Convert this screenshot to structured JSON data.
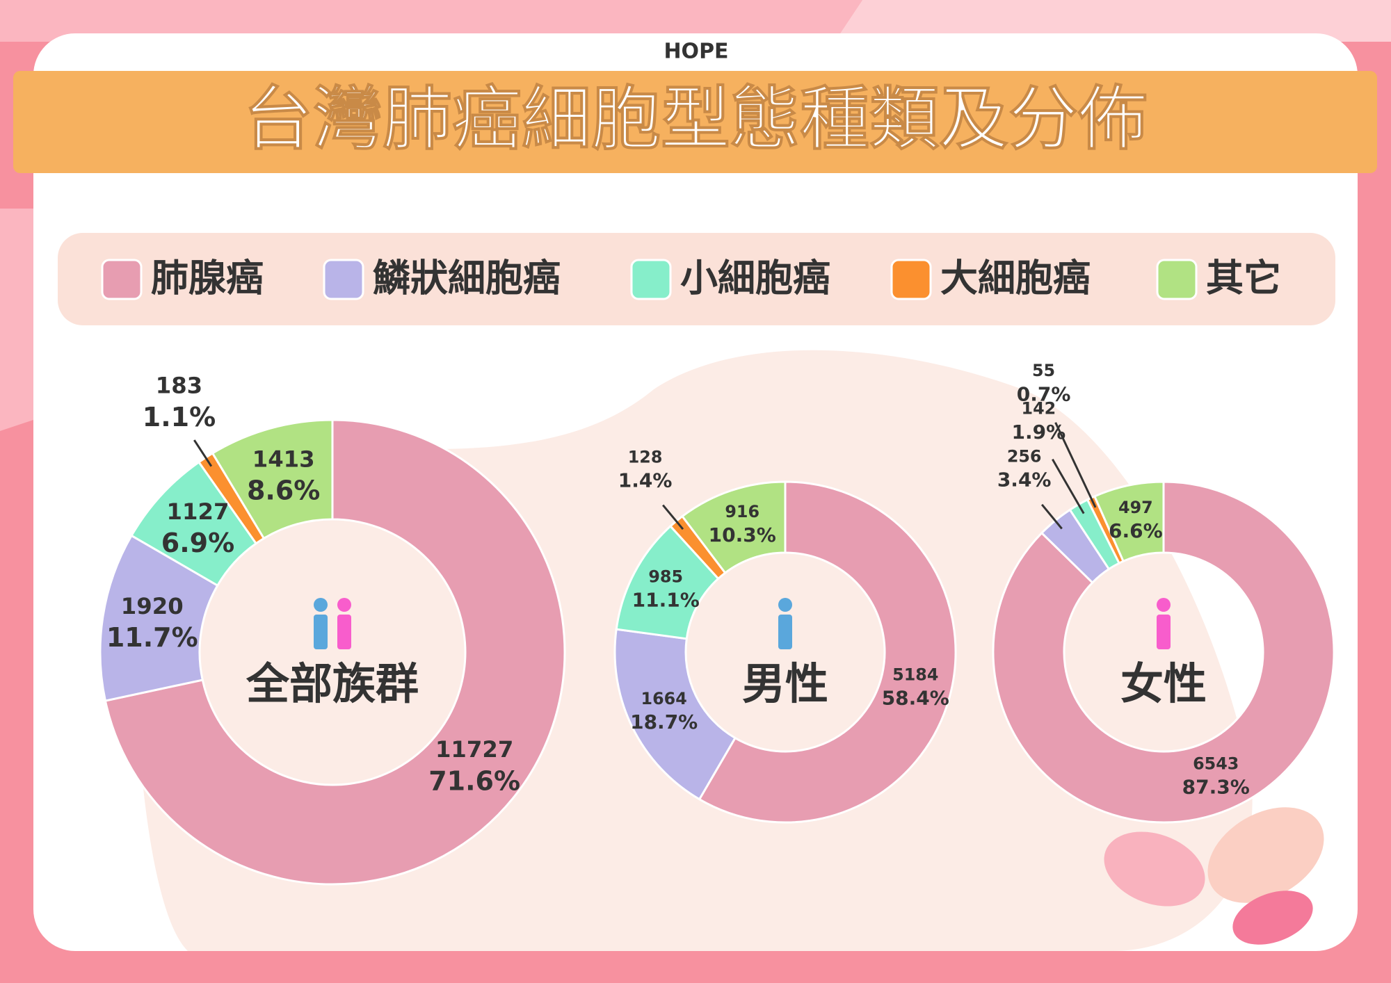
{
  "header": {
    "logo": "HOPE",
    "title": "台灣肺癌細胞型態種類及分佈"
  },
  "legend": {
    "categories": [
      "肺腺癌",
      "鱗狀細胞癌",
      "小細胞癌",
      "大細胞癌",
      "其它"
    ],
    "colors": [
      "#e79db1",
      "#b9b4e8",
      "#86eeca",
      "#fb902f",
      "#b1e283"
    ]
  },
  "chart_data": [
    {
      "type": "donut",
      "title": "全部族群",
      "values": [
        11727,
        1920,
        1127,
        183,
        1413
      ],
      "percent_labels": [
        "71.6%",
        "11.7%",
        "6.9%",
        "1.1%",
        "8.6%"
      ]
    },
    {
      "type": "donut",
      "title": "男性",
      "values": [
        5184,
        1664,
        985,
        128,
        916
      ],
      "percent_labels": [
        "58.4%",
        "18.7%",
        "11.1%",
        "1.4%",
        "10.3%"
      ]
    },
    {
      "type": "donut",
      "title": "女性",
      "values": [
        6543,
        256,
        142,
        55,
        497
      ],
      "percent_labels": [
        "87.3%",
        "3.4%",
        "1.9%",
        "0.7%",
        "6.6%"
      ]
    }
  ]
}
